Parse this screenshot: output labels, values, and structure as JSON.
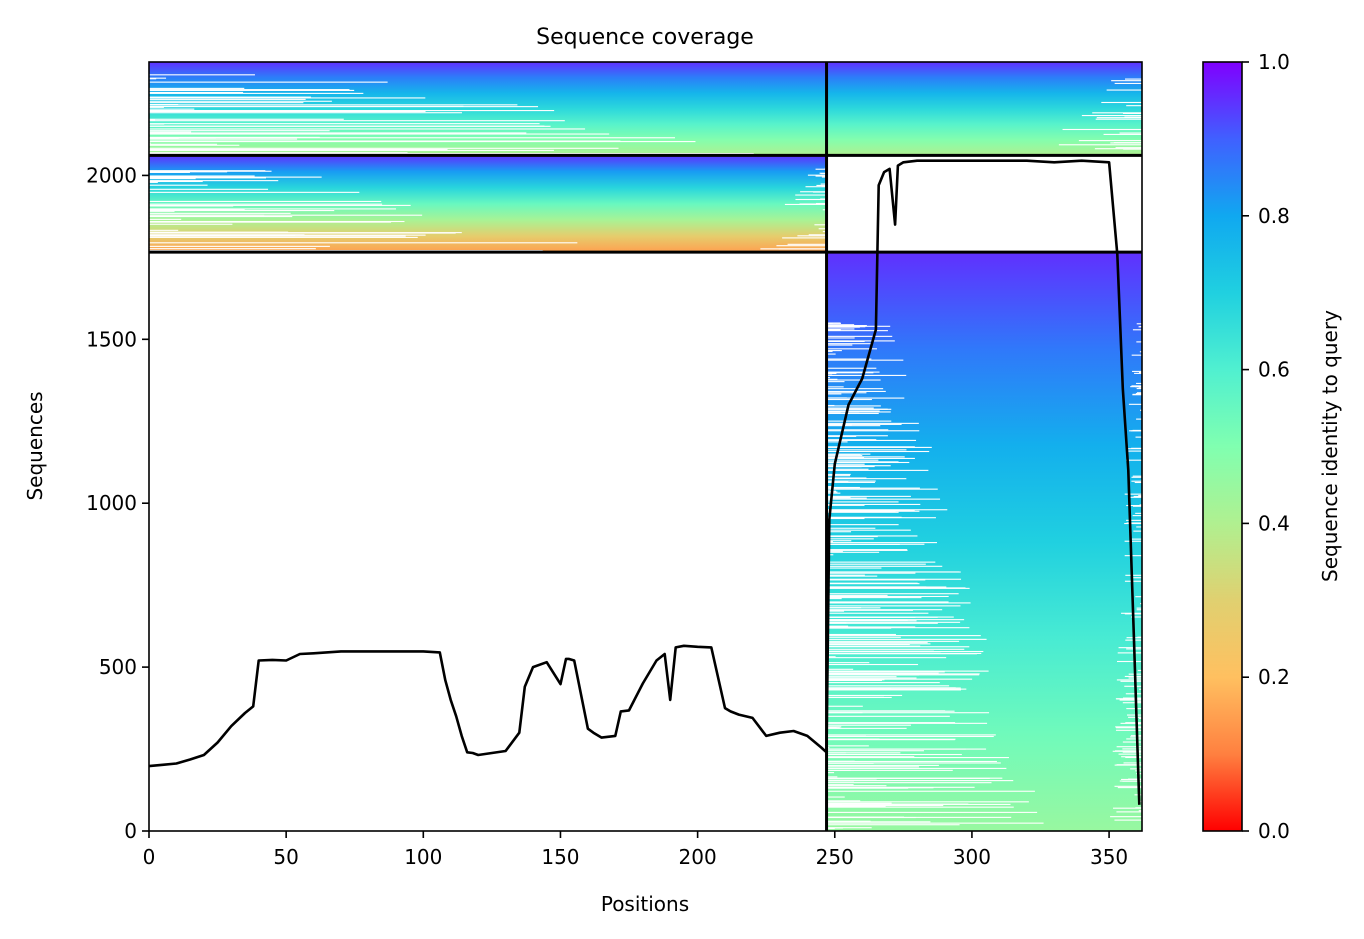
{
  "chart_data": {
    "type": "heatmap",
    "title": "Sequence coverage",
    "xlabel": "Positions",
    "ylabel": "Sequences",
    "xlim": [
      0,
      362
    ],
    "ylim": [
      0,
      2346
    ],
    "x_ticks": [
      "0",
      "50",
      "100",
      "150",
      "200",
      "250",
      "300",
      "350"
    ],
    "y_ticks": [
      "0",
      "500",
      "1000",
      "1500",
      "2000"
    ],
    "colorbar": {
      "label": "Sequence identity to query",
      "colormap": "rainbow_r",
      "range": [
        0,
        1
      ],
      "ticks": [
        "0.0",
        "0.2",
        "0.4",
        "0.6",
        "0.8",
        "1.0"
      ],
      "colors": [
        "#ff0000",
        "#ff8040",
        "#ffc060",
        "#e0d070",
        "#b0f090",
        "#80ffb0",
        "#50f0d0",
        "#20d0e0",
        "#10a8f0",
        "#4060ff",
        "#8000ff"
      ]
    },
    "segment_boundary_x": 247,
    "block_boundaries_y": [
      1766,
      2061
    ],
    "blocks": [
      {
        "rows": [
          0,
          1766
        ],
        "x_range": [
          247,
          362
        ],
        "identity_top": 0.95,
        "identity_bottom": 0.45
      },
      {
        "rows": [
          1766,
          2061
        ],
        "x_range": [
          0,
          247
        ],
        "identity_top": 0.95,
        "identity_bottom": 0.15
      },
      {
        "rows": [
          2061,
          2346
        ],
        "x_range": [
          0,
          362
        ],
        "identity_top": 0.95,
        "identity_bottom": 0.4
      }
    ],
    "coverage_line": {
      "x": [
        0,
        5,
        10,
        15,
        20,
        25,
        30,
        35,
        38,
        40,
        45,
        50,
        55,
        60,
        70,
        80,
        90,
        100,
        106,
        108,
        110,
        112,
        114,
        116,
        118,
        120,
        125,
        130,
        135,
        137,
        140,
        145,
        150,
        152,
        153,
        155,
        160,
        162,
        165,
        170,
        172,
        175,
        180,
        185,
        188,
        190,
        192,
        195,
        200,
        205,
        210,
        212,
        215,
        220,
        225,
        230,
        235,
        240,
        245,
        247,
        248,
        250,
        255,
        260,
        265,
        266,
        268,
        270,
        272,
        273,
        275,
        280,
        290,
        300,
        310,
        320,
        330,
        340,
        350,
        353,
        355,
        357,
        359,
        361
      ],
      "y": [
        198,
        202,
        206,
        218,
        232,
        270,
        320,
        360,
        380,
        520,
        522,
        520,
        540,
        542,
        548,
        548,
        548,
        548,
        545,
        460,
        400,
        350,
        290,
        240,
        238,
        232,
        238,
        244,
        300,
        440,
        500,
        515,
        448,
        525,
        525,
        520,
        312,
        300,
        285,
        290,
        365,
        368,
        450,
        520,
        540,
        400,
        560,
        565,
        562,
        560,
        375,
        365,
        355,
        345,
        290,
        300,
        305,
        290,
        255,
        240,
        950,
        1120,
        1300,
        1380,
        1530,
        1970,
        2010,
        2020,
        1850,
        2030,
        2040,
        2045,
        2045,
        2045,
        2045,
        2045,
        2040,
        2045,
        2040,
        1760,
        1350,
        1100,
        600,
        80
      ]
    }
  }
}
